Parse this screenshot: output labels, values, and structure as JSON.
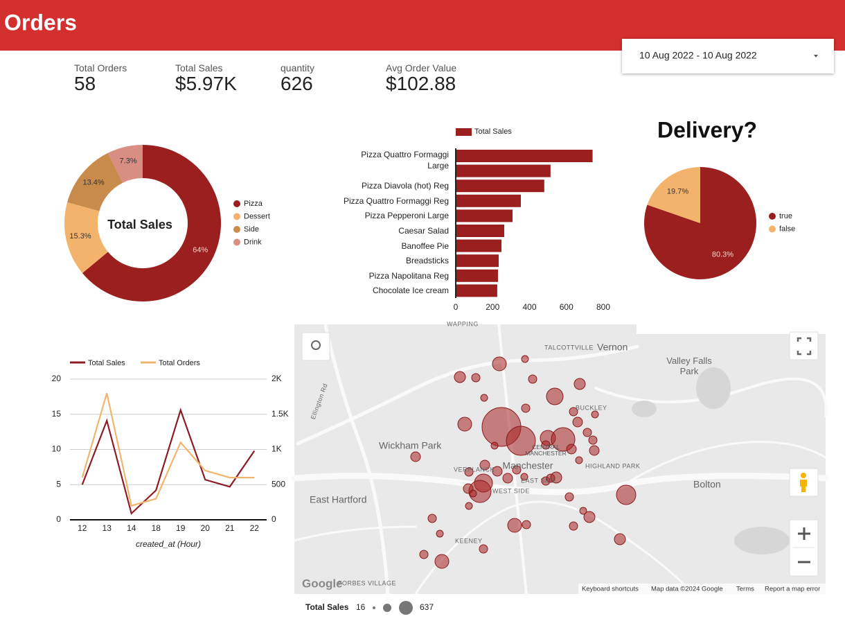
{
  "header": {
    "title": "Orders"
  },
  "date_range": "10 Aug 2022 - 10 Aug 2022",
  "kpis": [
    {
      "label": "Total Orders",
      "value": "58"
    },
    {
      "label": "Total Sales",
      "value": "$5.97K"
    },
    {
      "label": "quantity",
      "value": "626"
    },
    {
      "label": "Avg Order Value",
      "value": "$102.88"
    }
  ],
  "chart_data": [
    {
      "type": "donut",
      "center_label": "Total Sales",
      "categories": [
        "Pizza",
        "Dessert",
        "Side",
        "Drink"
      ],
      "values": [
        64,
        15.3,
        13.4,
        7.3
      ],
      "value_labels": [
        "64%",
        "15.3%",
        "13.4%",
        "7.3%"
      ],
      "colors": [
        "#9b1f1f",
        "#f4b36c",
        "#c98b4c",
        "#d98e84"
      ],
      "legend": "right"
    },
    {
      "type": "hbar",
      "legend": "top",
      "categories": [
        "Pizza Quattro Formaggi Large",
        null,
        "Pizza Diavola (hot) Reg",
        "Pizza Quattro Formaggi Reg",
        "Pizza Pepperoni Large",
        "Caesar Salad",
        "Banoffee Pie",
        "Breadsticks",
        "Pizza Napolitana Reg",
        "Chocolate Ice cream"
      ],
      "series": [
        {
          "name": "Total Sales",
          "color": "#9b1f1f",
          "values": [
            742,
            514,
            480,
            353,
            308,
            263,
            248,
            233,
            229,
            225
          ]
        }
      ],
      "xlim": [
        0,
        800
      ],
      "xticks": [
        0,
        200,
        400,
        600,
        800
      ]
    },
    {
      "type": "pie",
      "title": "Delivery?",
      "categories": [
        "true",
        "false"
      ],
      "values": [
        80.3,
        19.7
      ],
      "value_labels": [
        "80.3%",
        "19.7%"
      ],
      "colors": [
        "#9b1f1f",
        "#f4b36c"
      ],
      "legend": "right"
    },
    {
      "type": "line",
      "legend": "top",
      "grid": true,
      "xlabel": "created_at (Hour)",
      "categories": [
        "12",
        "13",
        "14",
        "18",
        "19",
        "20",
        "21",
        "22"
      ],
      "series": [
        {
          "name": "Total Sales",
          "color": "#8b1c26",
          "axis": "y2",
          "values": [
            500,
            1410,
            90,
            420,
            1560,
            570,
            470,
            980
          ]
        },
        {
          "name": "Total Orders",
          "color": "#f0b46e",
          "values": [
            6,
            18,
            2,
            3,
            11,
            7,
            6,
            6
          ]
        }
      ],
      "ylim": [
        0,
        20
      ],
      "yticks": [
        0,
        5,
        10,
        15,
        20
      ],
      "y2lim": [
        0,
        2000
      ],
      "y2ticks": [
        0,
        500,
        {
          "value": 1000,
          "label": "1K"
        },
        {
          "value": 1500,
          "label": "1.5K"
        },
        {
          "value": 2000,
          "label": "2K"
        }
      ]
    }
  ],
  "map": {
    "labels": [
      "WAPPING",
      "TALCOTTVILLE",
      "Vernon",
      "Valley Falls Park",
      "BUCKLEY",
      "Ellington Rd",
      "Wickham Park",
      "CENTRAL MANCHESTER",
      "Manchester",
      "VERPLANCK",
      "HIGHLAND PARK",
      "EAST SIDE",
      "WEST SIDE",
      "East Hartford",
      "Bolton",
      "KEENEY",
      "FORBES VILLAGE",
      "Google"
    ],
    "attribution": [
      "Keyboard shortcuts",
      "Map data ©2024 Google",
      "Terms",
      "Report a map error"
    ],
    "size_legend": {
      "title": "Total Sales",
      "min": 16,
      "max": 637
    }
  }
}
